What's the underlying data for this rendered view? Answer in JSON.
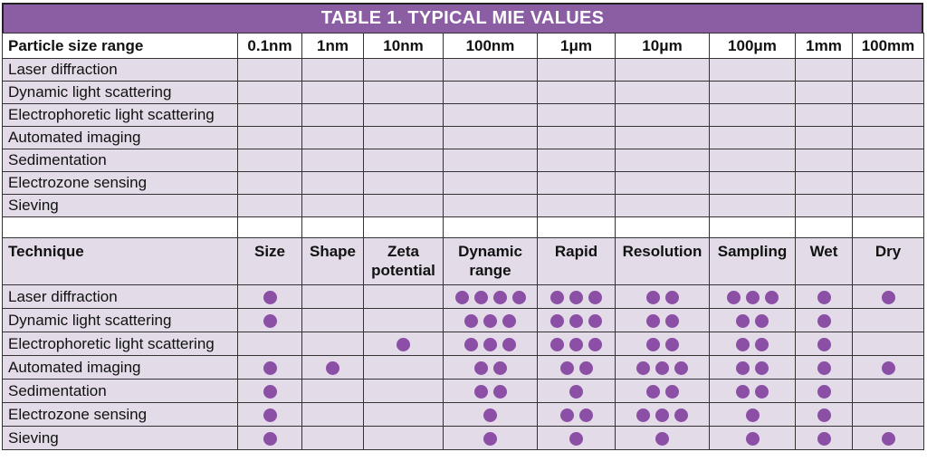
{
  "title": "TABLE 1.  TYPICAL MIE VALUES",
  "accent_color": "#8b5ea4",
  "dot_color": "#8b4fa6",
  "size_table": {
    "header": [
      "Particle size range",
      "0.1nm",
      "1nm",
      "10nm",
      "100nm",
      "1μm",
      "10μm",
      "100μm",
      "1mm",
      "100mm"
    ],
    "rows": [
      "Laser diffraction",
      "Dynamic light scattering",
      "Electrophoretic light scattering",
      "Automated imaging",
      "Sedimentation",
      "Electrozone sensing",
      "Sieving"
    ]
  },
  "technique_table": {
    "header": [
      "Technique",
      "Size",
      "Shape",
      "Zeta potential",
      "Dynamic range",
      "Rapid",
      "Resolution",
      "Sampling",
      "Wet",
      "Dry"
    ],
    "rows": [
      {
        "name": "Laser diffraction",
        "ratings": [
          1,
          0,
          0,
          4,
          3,
          2,
          3,
          1,
          1
        ]
      },
      {
        "name": "Dynamic light scattering",
        "ratings": [
          1,
          0,
          0,
          3,
          3,
          2,
          2,
          1,
          0
        ]
      },
      {
        "name": "Electrophoretic light scattering",
        "ratings": [
          0,
          0,
          1,
          3,
          3,
          2,
          2,
          1,
          0
        ]
      },
      {
        "name": "Automated imaging",
        "ratings": [
          1,
          1,
          0,
          2,
          2,
          3,
          2,
          1,
          1
        ]
      },
      {
        "name": "Sedimentation",
        "ratings": [
          1,
          0,
          0,
          2,
          1,
          2,
          2,
          1,
          0
        ]
      },
      {
        "name": "Electrozone sensing",
        "ratings": [
          1,
          0,
          0,
          1,
          2,
          3,
          1,
          1,
          0
        ]
      },
      {
        "name": "Sieving",
        "ratings": [
          1,
          0,
          0,
          1,
          1,
          1,
          1,
          1,
          1
        ]
      }
    ]
  }
}
